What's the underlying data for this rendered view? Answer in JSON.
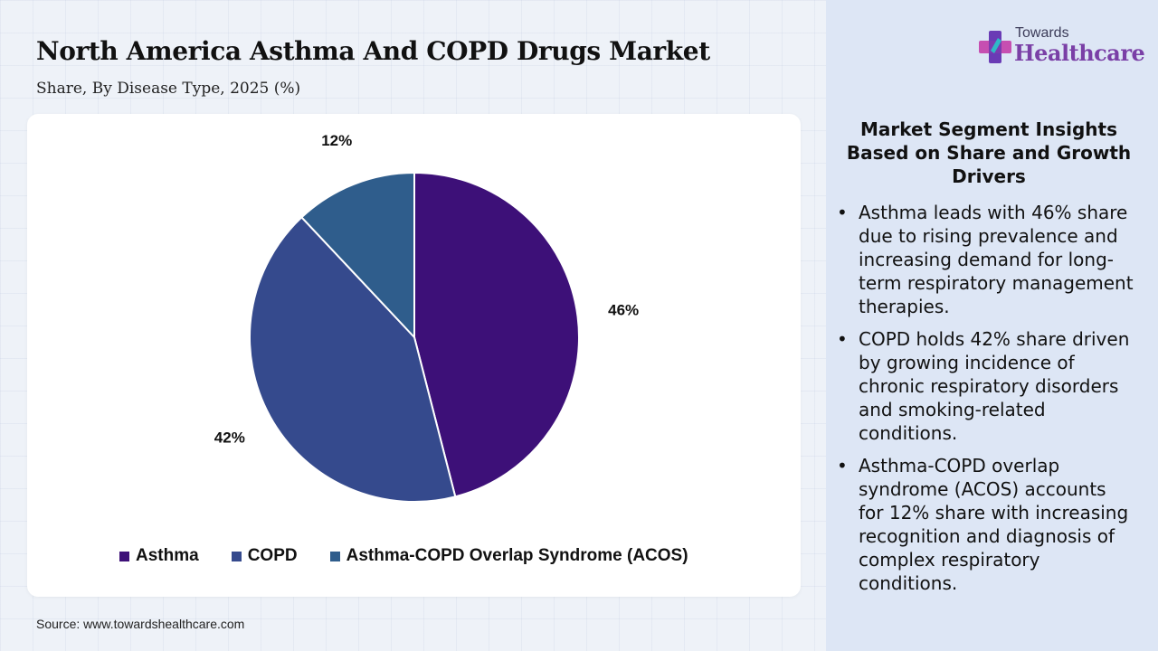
{
  "header": {
    "title": "North America Asthma And COPD Drugs Market",
    "subtitle": "Share, By Disease Type, 2025 (%)"
  },
  "chart_data": {
    "type": "pie",
    "title": "North America Asthma And COPD Drugs Market",
    "subtitle": "Share, By Disease Type, 2025 (%)",
    "unit": "%",
    "slices": [
      {
        "label": "Asthma",
        "value": 46,
        "display": "46%",
        "color": "#3d1078"
      },
      {
        "label": "COPD",
        "value": 42,
        "display": "42%",
        "color": "#354a8d"
      },
      {
        "label": "Asthma-COPD Overlap Syndrome (ACOS)",
        "value": 12,
        "display": "12%",
        "color": "#2f5d8c"
      }
    ],
    "legend_position": "bottom"
  },
  "source": "Source: www.towardshealthcare.com",
  "logo": {
    "top_text": "Towards",
    "main_text": "Healthcare",
    "colors": {
      "accent1": "#6a3bb5",
      "accent2": "#2fb9c7",
      "accent3": "#c64fb1"
    }
  },
  "insights": {
    "heading": "Market Segment Insights Based on Share and Growth Drivers",
    "bullet": "•",
    "items": [
      "Asthma leads with 46% share due to rising prevalence and increasing demand for long-term respiratory management therapies.",
      "COPD holds 42% share driven by growing incidence of chronic respiratory disorders and smoking-related conditions.",
      "Asthma-COPD overlap syndrome (ACOS) accounts for 12% share with increasing recognition and diagnosis of complex respiratory conditions."
    ]
  },
  "colors": {
    "background": "#eef2f8",
    "panel": "#dde6f5",
    "card": "#ffffff"
  }
}
